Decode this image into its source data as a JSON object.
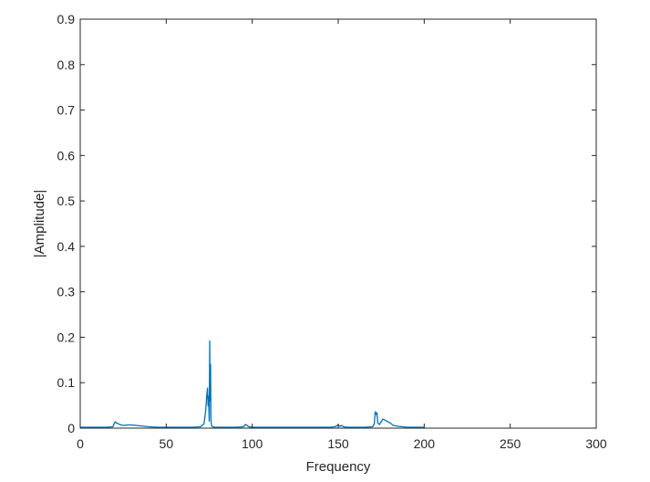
{
  "chart_data": {
    "type": "line",
    "title": "",
    "xlabel": "Frequency",
    "ylabel": "|Amplitude|",
    "xlim": [
      0,
      300
    ],
    "ylim": [
      0,
      0.9
    ],
    "xticks": [
      0,
      50,
      100,
      150,
      200,
      250,
      300
    ],
    "yticks": [
      0,
      0.1,
      0.2,
      0.3,
      0.4,
      0.5,
      0.6,
      0.7,
      0.8,
      0.9
    ],
    "xtick_labels": [
      "0",
      "50",
      "100",
      "150",
      "200",
      "250",
      "300"
    ],
    "ytick_labels": [
      "0",
      "0.1",
      "0.2",
      "0.3",
      "0.4",
      "0.5",
      "0.6",
      "0.7",
      "0.8",
      "0.9"
    ],
    "grid": false,
    "box": true,
    "legend": null,
    "series": [
      {
        "color": "#0072BD",
        "x": [
          0,
          5,
          10,
          15,
          19,
          20,
          20.5,
          21,
          22,
          23,
          25,
          28,
          30,
          35,
          40,
          45,
          50,
          55,
          60,
          65,
          70,
          72,
          73,
          73.5,
          74,
          74.3,
          74.6,
          75,
          75.3,
          75.5,
          75.8,
          76,
          76.3,
          76.6,
          77,
          78,
          80,
          85,
          90,
          95,
          96,
          97,
          98,
          100,
          105,
          110,
          120,
          130,
          140,
          145,
          148,
          150,
          151,
          152,
          153,
          155,
          160,
          165,
          170,
          171,
          171.5,
          172,
          172.5,
          173,
          174,
          175,
          176,
          177,
          178,
          180,
          182,
          185,
          190,
          195,
          200
        ],
        "y": [
          0.002,
          0.002,
          0.002,
          0.002,
          0.003,
          0.012,
          0.014,
          0.011,
          0.01,
          0.008,
          0.006,
          0.007,
          0.007,
          0.005,
          0.003,
          0.002,
          0.002,
          0.002,
          0.002,
          0.002,
          0.003,
          0.01,
          0.04,
          0.07,
          0.088,
          0.05,
          0.07,
          0.015,
          0.192,
          0.06,
          0.14,
          0.02,
          0.008,
          0.004,
          0.003,
          0.002,
          0.002,
          0.002,
          0.002,
          0.003,
          0.008,
          0.006,
          0.003,
          0.002,
          0.002,
          0.002,
          0.002,
          0.002,
          0.002,
          0.002,
          0.003,
          0.007,
          0.004,
          0.006,
          0.003,
          0.002,
          0.002,
          0.002,
          0.003,
          0.01,
          0.036,
          0.03,
          0.034,
          0.012,
          0.008,
          0.014,
          0.02,
          0.018,
          0.016,
          0.012,
          0.006,
          0.004,
          0.002,
          0.002,
          0.002
        ]
      }
    ]
  }
}
